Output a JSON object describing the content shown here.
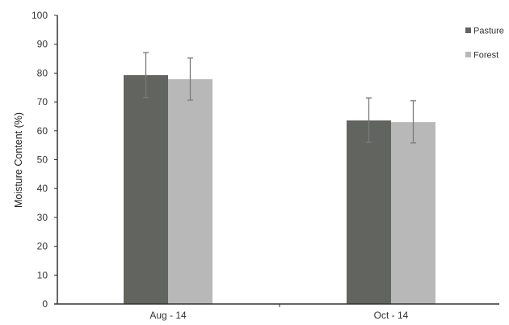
{
  "chart_data": {
    "type": "bar",
    "title": "",
    "xlabel": "",
    "ylabel": "Moisture Content (%)",
    "ylim": [
      0,
      100
    ],
    "yticks": [
      0,
      10,
      20,
      30,
      40,
      50,
      60,
      70,
      80,
      90,
      100
    ],
    "grid": false,
    "legend_position": "top-right",
    "categories": [
      "Aug - 14",
      "Oct - 14"
    ],
    "series": [
      {
        "name": "Pasture",
        "color": "#62645f",
        "values": [
          79.3,
          63.6
        ],
        "error_upper": [
          87.1,
          71.4
        ],
        "error_lower": [
          71.5,
          56.0
        ]
      },
      {
        "name": "Forest",
        "color": "#b9b8b8",
        "values": [
          77.9,
          63.0
        ],
        "error_upper": [
          85.2,
          70.4
        ],
        "error_lower": [
          70.6,
          55.8
        ]
      }
    ]
  },
  "colors": {
    "axis": "#333333",
    "error_bar": "#7a7a7a"
  }
}
